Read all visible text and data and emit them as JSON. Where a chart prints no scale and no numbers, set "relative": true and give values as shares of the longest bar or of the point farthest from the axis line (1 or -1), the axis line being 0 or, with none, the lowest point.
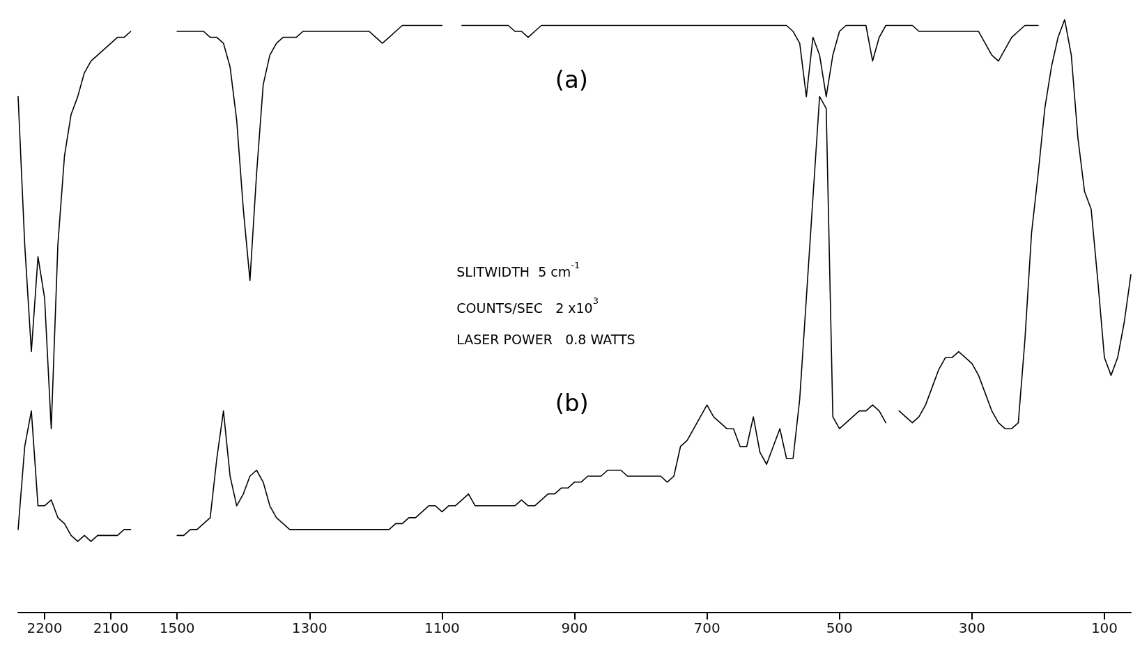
{
  "chart_data": {
    "type": "line",
    "relative": true,
    "marker": "none",
    "line_style": "solid",
    "categories": [
      null,
      null,
      null,
      null,
      "2200",
      null,
      null,
      null,
      null,
      null,
      null,
      null,
      null,
      null,
      "2100",
      null,
      null,
      null,
      null,
      null,
      null,
      null,
      null,
      null,
      "1500",
      null,
      null,
      null,
      null,
      null,
      null,
      null,
      null,
      null,
      null,
      null,
      null,
      null,
      null,
      null,
      null,
      null,
      null,
      null,
      "1300",
      null,
      null,
      null,
      null,
      null,
      null,
      null,
      null,
      null,
      null,
      null,
      null,
      null,
      null,
      null,
      null,
      null,
      null,
      null,
      "1100",
      null,
      null,
      null,
      null,
      null,
      null,
      null,
      null,
      null,
      null,
      null,
      null,
      null,
      null,
      null,
      null,
      null,
      null,
      null,
      "900",
      null,
      null,
      null,
      null,
      null,
      null,
      null,
      null,
      null,
      null,
      null,
      null,
      null,
      null,
      null,
      null,
      null,
      null,
      null,
      "700",
      null,
      null,
      null,
      null,
      null,
      null,
      null,
      null,
      null,
      null,
      null,
      null,
      null,
      null,
      null,
      null,
      null,
      null,
      null,
      "500",
      null,
      null,
      null,
      null,
      null,
      null,
      null,
      null,
      null,
      null,
      null,
      null,
      null,
      null,
      null,
      null,
      null,
      null,
      null,
      "300",
      null,
      null,
      null,
      null,
      null,
      null,
      null,
      null,
      null,
      null,
      null,
      null,
      null,
      null,
      null,
      null,
      null,
      null,
      null,
      "100",
      null,
      null,
      null,
      null
    ],
    "series": [
      {
        "name": "(a)",
        "color": "#000000",
        "values": [
          0.87,
          0.62,
          0.44,
          0.6,
          0.53,
          0.31,
          0.62,
          0.77,
          0.84,
          0.87,
          0.91,
          0.93,
          0.94,
          0.95,
          0.96,
          0.97,
          0.97,
          0.98,
          null,
          null,
          null,
          null,
          null,
          null,
          0.98,
          0.98,
          0.98,
          0.98,
          0.98,
          0.97,
          0.97,
          0.96,
          0.92,
          0.83,
          0.68,
          0.56,
          0.74,
          0.89,
          0.94,
          0.96,
          0.97,
          0.97,
          0.97,
          0.98,
          0.98,
          0.98,
          0.98,
          0.98,
          0.98,
          0.98,
          0.98,
          0.98,
          0.98,
          0.98,
          0.97,
          0.96,
          0.97,
          0.98,
          0.99,
          0.99,
          0.99,
          0.99,
          0.99,
          0.99,
          0.99,
          null,
          null,
          0.99,
          0.99,
          0.99,
          0.99,
          0.99,
          0.99,
          0.99,
          0.99,
          0.98,
          0.98,
          0.97,
          0.98,
          0.99,
          0.99,
          0.99,
          0.99,
          0.99,
          0.99,
          0.99,
          0.99,
          0.99,
          0.99,
          0.99,
          0.99,
          0.99,
          0.99,
          0.99,
          0.99,
          0.99,
          0.99,
          0.99,
          0.99,
          0.99,
          0.99,
          0.99,
          0.99,
          0.99,
          0.99,
          0.99,
          0.99,
          0.99,
          0.99,
          0.99,
          0.99,
          0.99,
          0.99,
          0.99,
          0.99,
          0.99,
          0.99,
          0.98,
          0.96,
          0.87,
          0.97,
          0.94,
          0.87,
          0.94,
          0.98,
          0.99,
          0.99,
          0.99,
          0.99,
          0.93,
          0.97,
          0.99,
          0.99,
          0.99,
          0.99,
          0.99,
          0.98,
          0.98,
          0.98,
          0.98,
          0.98,
          0.98,
          0.98,
          0.98,
          0.98,
          0.98,
          0.96,
          0.94,
          0.93,
          0.95,
          0.97,
          0.98,
          0.99,
          0.99,
          0.99,
          null,
          null,
          null,
          null,
          null,
          null,
          null,
          null,
          null,
          null,
          null,
          null,
          null,
          null
        ]
      },
      {
        "name": "(b)",
        "color": "#000000",
        "values": [
          0.14,
          0.28,
          0.34,
          0.18,
          0.18,
          0.19,
          0.16,
          0.15,
          0.13,
          0.12,
          0.13,
          0.12,
          0.13,
          0.13,
          0.13,
          0.13,
          0.14,
          0.14,
          null,
          null,
          null,
          null,
          null,
          null,
          0.13,
          0.13,
          0.14,
          0.14,
          0.15,
          0.16,
          0.26,
          0.34,
          0.23,
          0.18,
          0.2,
          0.23,
          0.24,
          0.22,
          0.18,
          0.16,
          0.15,
          0.14,
          0.14,
          0.14,
          0.14,
          0.14,
          0.14,
          0.14,
          0.14,
          0.14,
          0.14,
          0.14,
          0.14,
          0.14,
          0.14,
          0.14,
          0.14,
          0.15,
          0.15,
          0.16,
          0.16,
          0.17,
          0.18,
          0.18,
          0.17,
          0.18,
          0.18,
          0.19,
          0.2,
          0.18,
          0.18,
          0.18,
          0.18,
          0.18,
          0.18,
          0.18,
          0.19,
          0.18,
          0.18,
          0.19,
          0.2,
          0.2,
          0.21,
          0.21,
          0.22,
          0.22,
          0.23,
          0.23,
          0.23,
          0.24,
          0.24,
          0.24,
          0.23,
          0.23,
          0.23,
          0.23,
          0.23,
          0.23,
          0.22,
          0.23,
          0.28,
          0.29,
          0.31,
          0.33,
          0.35,
          0.33,
          0.32,
          0.31,
          0.31,
          0.28,
          0.28,
          0.33,
          0.27,
          0.25,
          0.28,
          0.31,
          0.26,
          0.26,
          0.36,
          0.53,
          0.7,
          0.87,
          0.85,
          0.33,
          0.31,
          0.32,
          0.33,
          0.34,
          0.34,
          0.35,
          0.34,
          0.32,
          null,
          0.34,
          0.33,
          0.32,
          0.33,
          0.35,
          0.38,
          0.41,
          0.43,
          0.43,
          0.44,
          0.43,
          0.42,
          0.4,
          0.37,
          0.34,
          0.32,
          0.31,
          0.31,
          0.32,
          0.46,
          0.64,
          0.74,
          0.85,
          0.92,
          0.97,
          1.0,
          0.94,
          0.8,
          0.71,
          0.68,
          0.56,
          0.43,
          0.4,
          0.43,
          0.49,
          0.57
        ]
      }
    ],
    "annotations": [
      "SLITWIDTH  5 cm$^{-1}$",
      "COUNTS/SEC   2 x10$^{3}$",
      "LASER POWER   0.8 WATTS"
    ]
  }
}
